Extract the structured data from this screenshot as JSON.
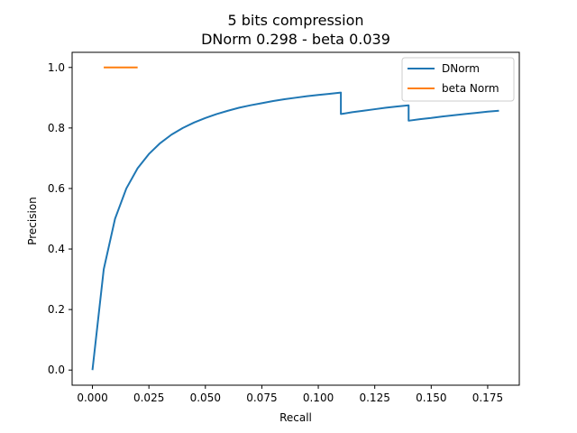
{
  "chart_data": {
    "type": "line",
    "title": "5 bits compression",
    "subtitle": "DNorm 0.298 - beta 0.039",
    "xlabel": "Recall",
    "ylabel": "Precision",
    "xlim": [
      -0.009,
      0.189
    ],
    "ylim": [
      -0.05,
      1.05
    ],
    "xticks": [
      0.0,
      0.025,
      0.05,
      0.075,
      0.1,
      0.125,
      0.15,
      0.175
    ],
    "xtick_labels": [
      "0.000",
      "0.025",
      "0.050",
      "0.075",
      "0.100",
      "0.125",
      "0.150",
      "0.175"
    ],
    "yticks": [
      0.0,
      0.2,
      0.4,
      0.6,
      0.8,
      1.0
    ],
    "ytick_labels": [
      "0.0",
      "0.2",
      "0.4",
      "0.6",
      "0.8",
      "1.0"
    ],
    "grid": false,
    "legend_position": "top-right",
    "series": [
      {
        "name": "DNorm",
        "color": "#1f77b4",
        "points": [
          [
            0.0,
            0.0
          ],
          [
            0.005,
            0.333
          ],
          [
            0.01,
            0.5
          ],
          [
            0.015,
            0.6
          ],
          [
            0.02,
            0.667
          ],
          [
            0.025,
            0.714
          ],
          [
            0.03,
            0.75
          ],
          [
            0.035,
            0.778
          ],
          [
            0.04,
            0.8
          ],
          [
            0.045,
            0.818
          ],
          [
            0.05,
            0.833
          ],
          [
            0.055,
            0.846
          ],
          [
            0.06,
            0.857
          ],
          [
            0.065,
            0.867
          ],
          [
            0.07,
            0.875
          ],
          [
            0.075,
            0.882
          ],
          [
            0.08,
            0.889
          ],
          [
            0.085,
            0.895
          ],
          [
            0.09,
            0.9
          ],
          [
            0.095,
            0.905
          ],
          [
            0.1,
            0.909
          ],
          [
            0.105,
            0.913
          ],
          [
            0.11,
            0.917
          ],
          [
            0.11,
            0.846
          ],
          [
            0.115,
            0.852
          ],
          [
            0.12,
            0.857
          ],
          [
            0.125,
            0.862
          ],
          [
            0.13,
            0.867
          ],
          [
            0.135,
            0.871
          ],
          [
            0.14,
            0.875
          ],
          [
            0.14,
            0.824
          ],
          [
            0.145,
            0.829
          ],
          [
            0.15,
            0.833
          ],
          [
            0.155,
            0.838
          ],
          [
            0.16,
            0.842
          ],
          [
            0.165,
            0.846
          ],
          [
            0.17,
            0.85
          ],
          [
            0.175,
            0.854
          ],
          [
            0.18,
            0.857
          ]
        ]
      },
      {
        "name": "beta Norm",
        "color": "#ff7f0e",
        "points": [
          [
            0.005,
            1.0
          ],
          [
            0.02,
            1.0
          ]
        ]
      }
    ]
  }
}
